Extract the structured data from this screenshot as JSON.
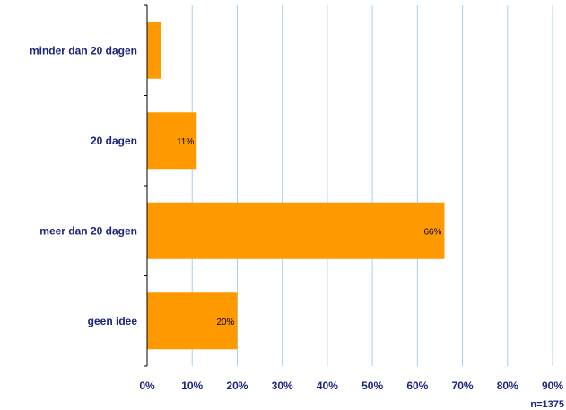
{
  "colors": {
    "bar": "#ff9900",
    "grid": "#a8d0e8",
    "axis_text": "#1a237e",
    "axis_line": "#000000"
  },
  "sample_note": "n=1375",
  "chart_data": {
    "type": "bar",
    "orientation": "horizontal",
    "categories": [
      "minder dan 20 dagen",
      "20 dagen",
      "meer dan 20 dagen",
      "geen idee"
    ],
    "values": [
      3,
      11,
      66,
      20
    ],
    "data_labels": [
      "",
      "11%",
      "66%",
      "20%"
    ],
    "xlim": [
      0,
      90
    ],
    "x_ticks": [
      0,
      10,
      20,
      30,
      40,
      50,
      60,
      70,
      80,
      90
    ],
    "x_tick_labels": [
      "0%",
      "10%",
      "20%",
      "30%",
      "40%",
      "50%",
      "60%",
      "70%",
      "80%",
      "90%"
    ],
    "grid": true,
    "title": "",
    "xlabel": "",
    "ylabel": ""
  }
}
